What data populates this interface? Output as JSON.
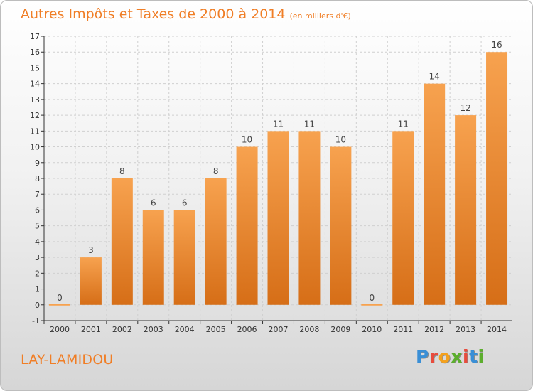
{
  "header": {
    "title": "Autres Impôts et Taxes de 2000 à 2014",
    "unit": "(en milliers d'€)"
  },
  "footer": {
    "commune": "LAY-LAMIDOU",
    "logo_letters": [
      "P",
      "r",
      "o",
      "x",
      "i",
      "t",
      "i"
    ],
    "logo_colors": [
      "#3a8fd6",
      "#e84c3d",
      "#f4a11d",
      "#5cae2d",
      "#e84c3d",
      "#3a8fd6",
      "#5cae2d"
    ]
  },
  "colors": {
    "bar_top": "#f7a24f",
    "bar_bottom": "#d66e17",
    "title": "#f07e26",
    "grid": "#d0d0d0",
    "axis": "#333333"
  },
  "chart_data": {
    "type": "bar",
    "title": "Autres Impôts et Taxes de 2000 à 2014",
    "subtitle": "(en milliers d'€)",
    "xlabel": "",
    "ylabel": "",
    "categories": [
      "2000",
      "2001",
      "2002",
      "2003",
      "2004",
      "2005",
      "2006",
      "2007",
      "2008",
      "2009",
      "2010",
      "2011",
      "2012",
      "2013",
      "2014"
    ],
    "values": [
      0,
      3,
      8,
      6,
      6,
      8,
      10,
      11,
      11,
      10,
      0,
      11,
      14,
      12,
      16
    ],
    "data_labels": [
      "0",
      "3",
      "8",
      "6",
      "6",
      "8",
      "10",
      "11",
      "11",
      "10",
      "0",
      "11",
      "14",
      "12",
      "16"
    ],
    "ylim": [
      -1,
      17
    ],
    "yticks": [
      -1,
      0,
      1,
      2,
      3,
      4,
      5,
      6,
      7,
      8,
      9,
      10,
      11,
      12,
      13,
      14,
      15,
      16,
      17
    ],
    "grid": true
  }
}
